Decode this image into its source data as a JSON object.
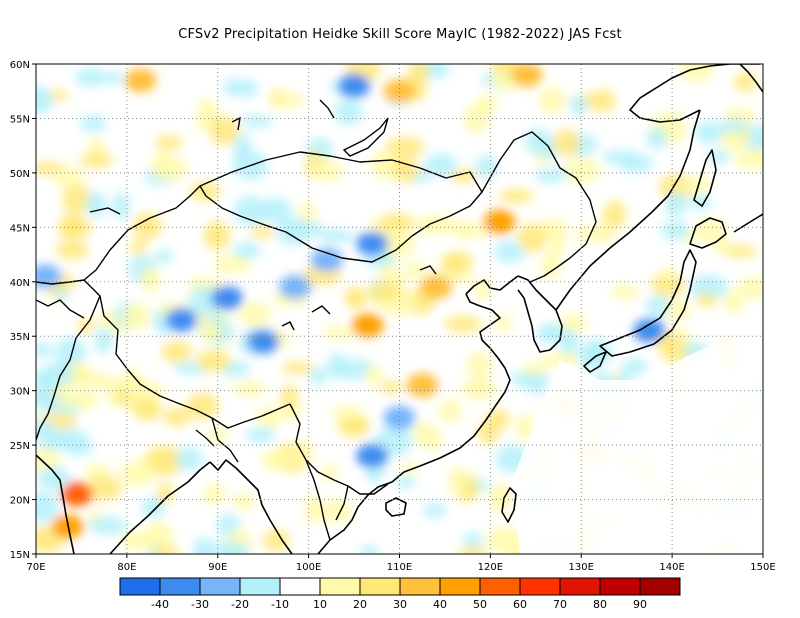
{
  "title": "CFSv2  Precipitation Heidke Skill Score MayIC (1982-2022) JAS Fcst",
  "map": {
    "lon_range": [
      70,
      150
    ],
    "lat_range": [
      15,
      60
    ],
    "lon_ticks": [
      "70E",
      "80E",
      "90E",
      "100E",
      "110E",
      "120E",
      "130E",
      "140E",
      "150E"
    ],
    "lat_ticks": [
      "15N",
      "20N",
      "25N",
      "30N",
      "35N",
      "40N",
      "45N",
      "50N",
      "55N",
      "60N"
    ],
    "grid": "dotted",
    "skill_patches": [
      {
        "lon": 74.5,
        "lat": 20.5,
        "level": 50
      },
      {
        "lon": 73.5,
        "lat": 17.5,
        "level": 40
      },
      {
        "lon": 106.5,
        "lat": 36.0,
        "level": 40
      },
      {
        "lon": 121.0,
        "lat": 45.5,
        "level": 40
      },
      {
        "lon": 110.0,
        "lat": 57.5,
        "level": 30
      },
      {
        "lon": 124.0,
        "lat": 59.0,
        "level": 30
      },
      {
        "lon": 81.5,
        "lat": 58.5,
        "level": 30
      },
      {
        "lon": 114.0,
        "lat": 39.5,
        "level": 30
      },
      {
        "lon": 112.5,
        "lat": 30.5,
        "level": 30
      },
      {
        "lon": 105.0,
        "lat": 58.0,
        "level": -30
      },
      {
        "lon": 107.0,
        "lat": 24.0,
        "level": -30
      },
      {
        "lon": 107.0,
        "lat": 43.5,
        "level": -30
      },
      {
        "lon": 91.0,
        "lat": 38.5,
        "level": -30
      },
      {
        "lon": 86.0,
        "lat": 36.5,
        "level": -30
      },
      {
        "lon": 95.0,
        "lat": 34.5,
        "level": -30
      },
      {
        "lon": 137.5,
        "lat": 35.5,
        "level": -30
      },
      {
        "lon": 102.0,
        "lat": 42.0,
        "level": -20
      },
      {
        "lon": 110.0,
        "lat": 27.5,
        "level": -20
      },
      {
        "lon": 98.5,
        "lat": 39.5,
        "level": -20
      },
      {
        "lon": 71.0,
        "lat": 40.5,
        "level": -20
      }
    ]
  },
  "colorbar": {
    "colors": [
      "#1e6eeb",
      "#3c8cf0",
      "#78b4fa",
      "#b4f0fa",
      "#ffffff",
      "#fffaaa",
      "#ffe878",
      "#ffc03c",
      "#ffa000",
      "#ff6000",
      "#ff3200",
      "#e11400",
      "#c00000",
      "#a50000"
    ],
    "labels": [
      "-40",
      "-30",
      "-20",
      "-10",
      "10",
      "20",
      "30",
      "40",
      "50",
      "60",
      "70",
      "80",
      "90"
    ]
  }
}
